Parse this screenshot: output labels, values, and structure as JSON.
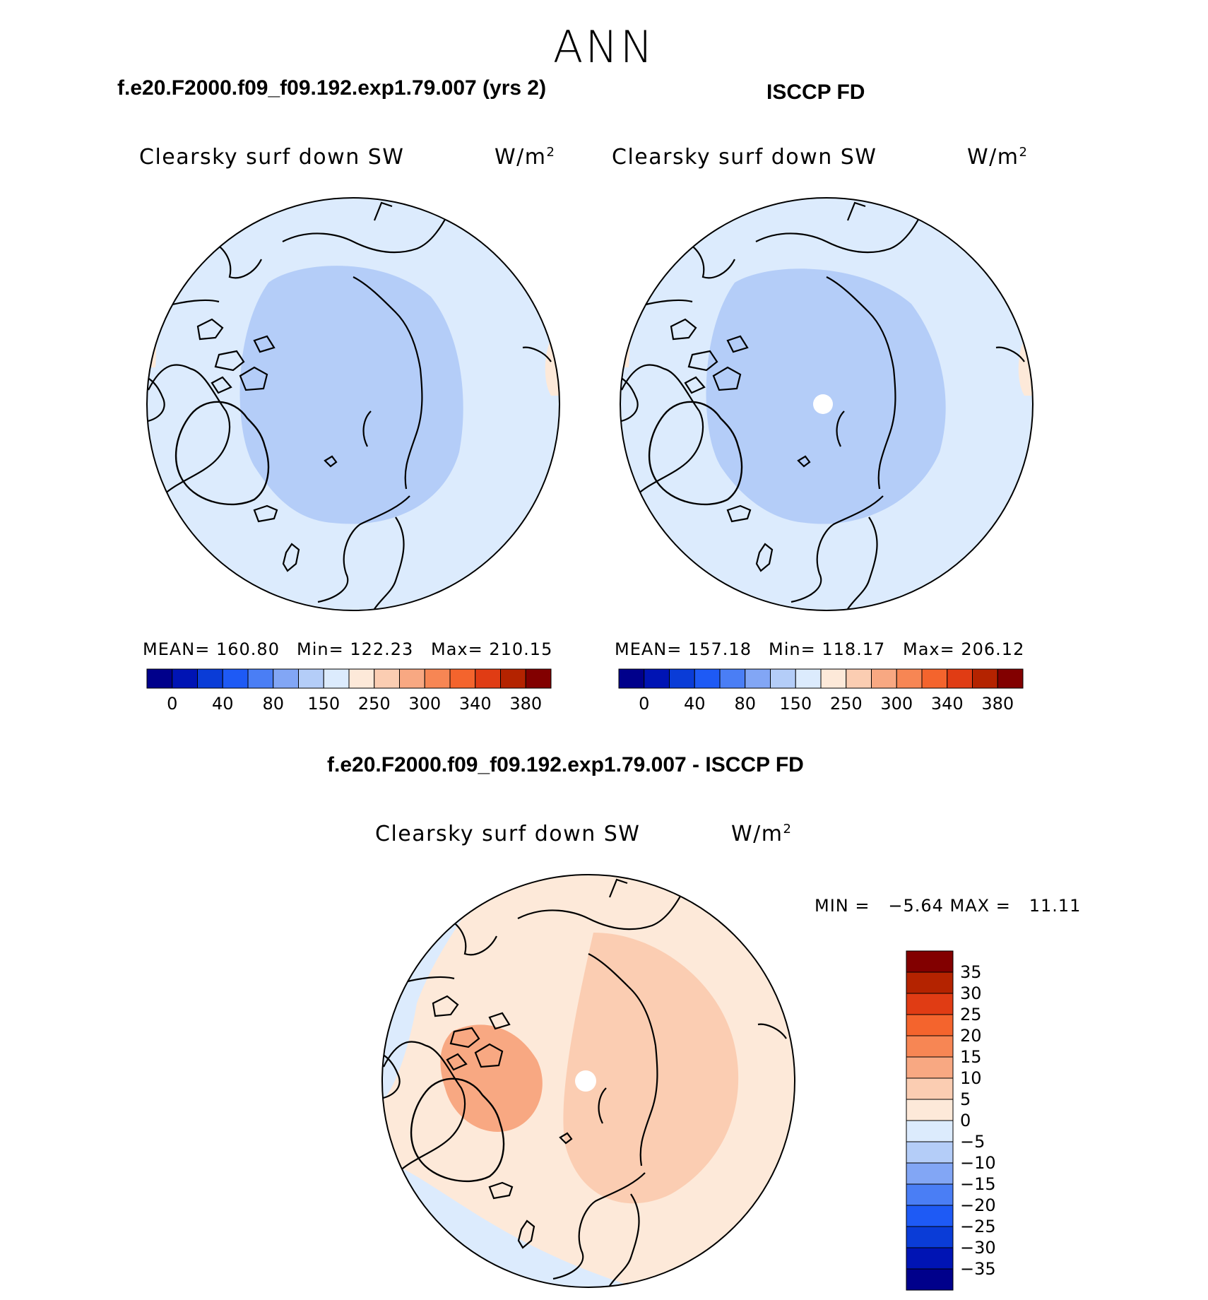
{
  "season": "ANN",
  "unit_text": "W/m",
  "unit_sup": "2",
  "colors": {
    "absolute_scale": [
      "#00008b",
      "#0014b4",
      "#0a3cd7",
      "#1e5af5",
      "#4a7ef5",
      "#82a6f5",
      "#b4cdf8",
      "#dcebfd",
      "#fde9d9",
      "#fbcdb2",
      "#f8a882",
      "#f78654",
      "#f4642d",
      "#e03c14",
      "#b42300",
      "#820000"
    ],
    "diff_scale": [
      "#00008b",
      "#0014b4",
      "#0a3cd7",
      "#1e5af5",
      "#4a7ef5",
      "#82a6f5",
      "#b4cdf8",
      "#dcebfd",
      "#fde9d9",
      "#fbcdb2",
      "#f8a882",
      "#f78654",
      "#f4642d",
      "#e03c14",
      "#b42300",
      "#820000"
    ],
    "land_outline": "#000000"
  },
  "panels": {
    "model": {
      "case_title": "f.e20.F2000.f09_f09.192.exp1.79.007 (yrs 2)",
      "variable": "Clearsky surf down SW",
      "mean_label": "MEAN= 160.80",
      "min_label": "Min= 122.23",
      "max_label": "Max= 210.15"
    },
    "obs": {
      "case_title": "ISCCP FD",
      "variable": "Clearsky surf down SW",
      "mean_label": "MEAN= 157.18",
      "min_label": "Min= 118.17",
      "max_label": "Max= 206.12"
    },
    "diff": {
      "case_title": "f.e20.F2000.f09_f09.192.exp1.79.007 - ISCCP FD",
      "variable": "Clearsky surf down SW",
      "minmax_label": "MIN =   −5.64 MAX =   11.11"
    }
  },
  "colorbar_abs_labels": [
    "0",
    "40",
    "80",
    "150",
    "250",
    "300",
    "340",
    "380"
  ],
  "colorbar_diff_labels": [
    "35",
    "30",
    "25",
    "20",
    "15",
    "10",
    "5",
    "0",
    "−5",
    "−10",
    "−15",
    "−20",
    "−25",
    "−30",
    "−35"
  ],
  "chart_data": [
    {
      "type": "heatmap",
      "projection": "north polar stereographic",
      "title": "f.e20.F2000.f09_f09.192.exp1.79.007 (yrs 2)",
      "variable": "Clearsky surf down SW",
      "units": "W/m2",
      "mean": 160.8,
      "min": 122.23,
      "max": 210.15,
      "levels": [
        0,
        40,
        80,
        150,
        250,
        300,
        340,
        380
      ]
    },
    {
      "type": "heatmap",
      "projection": "north polar stereographic",
      "title": "ISCCP FD",
      "variable": "Clearsky surf down SW",
      "units": "W/m2",
      "mean": 157.18,
      "min": 118.17,
      "max": 206.12,
      "levels": [
        0,
        40,
        80,
        150,
        250,
        300,
        340,
        380
      ]
    },
    {
      "type": "heatmap",
      "projection": "north polar stereographic",
      "title": "f.e20.F2000.f09_f09.192.exp1.79.007 - ISCCP FD",
      "variable": "Clearsky surf down SW",
      "units": "W/m2",
      "min": -5.64,
      "max": 11.11,
      "levels": [
        35,
        30,
        25,
        20,
        15,
        10,
        5,
        0,
        -5,
        -10,
        -15,
        -20,
        -25,
        -30,
        -35
      ]
    }
  ]
}
